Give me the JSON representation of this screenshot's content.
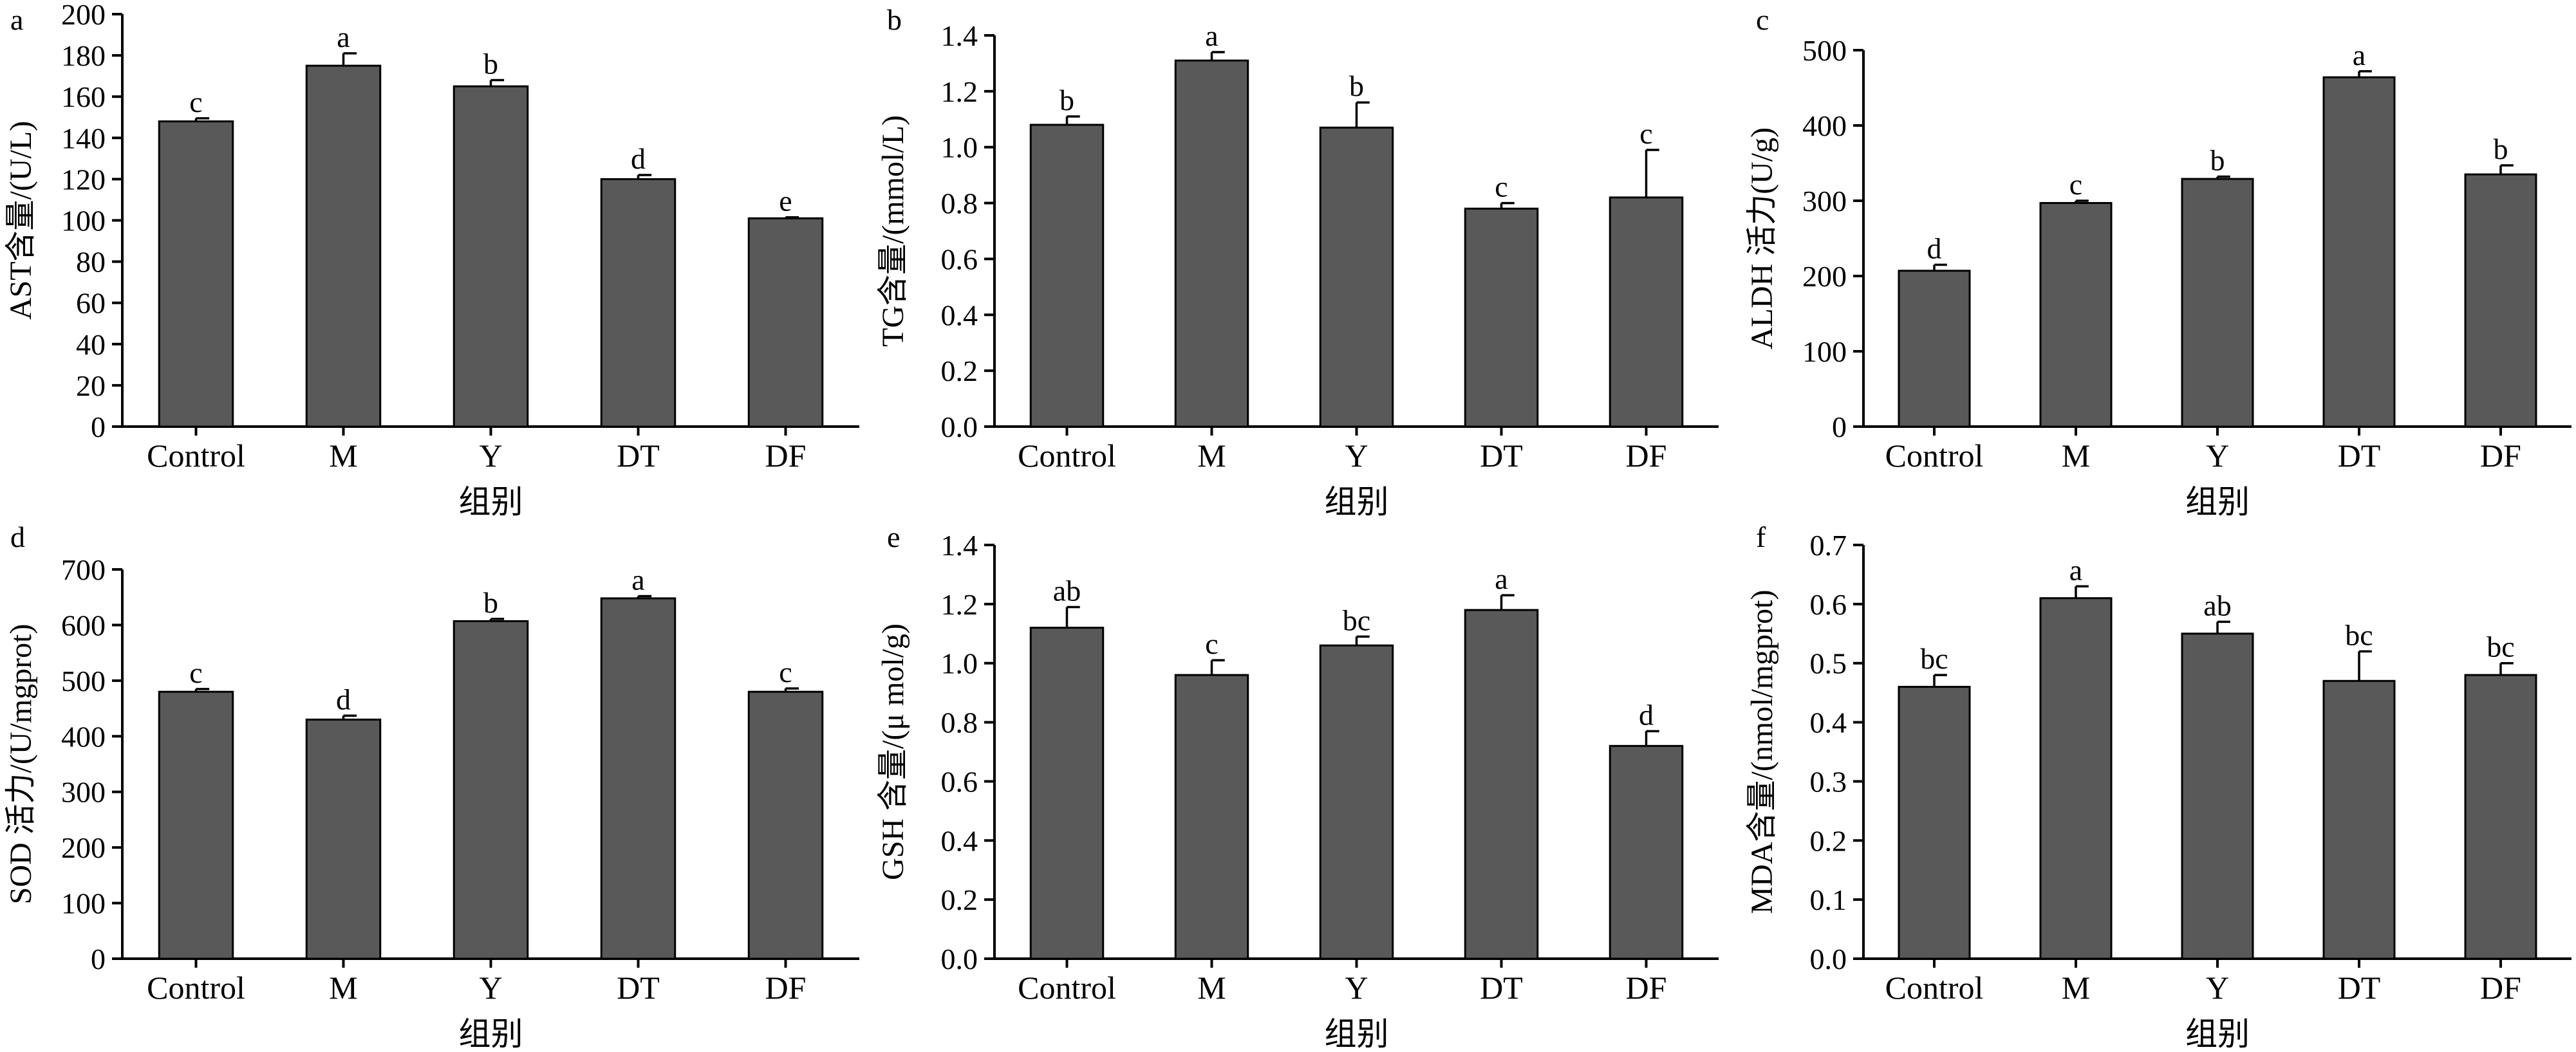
{
  "chart_data": [
    {
      "panel": "a",
      "type": "bar",
      "categories": [
        "Control",
        "M",
        "Y",
        "DT",
        "DF"
      ],
      "values": [
        148,
        175,
        165,
        120,
        101
      ],
      "errors": [
        1.5,
        6,
        3,
        2,
        0.5
      ],
      "significance": [
        "c",
        "a",
        "b",
        "d",
        "e"
      ],
      "ylabel": "AST含量/(U/L)",
      "xlabel": "组别",
      "ylim": [
        0,
        200
      ],
      "yticks": [
        0,
        20,
        40,
        60,
        80,
        100,
        120,
        140,
        160,
        180,
        200
      ]
    },
    {
      "panel": "b",
      "type": "bar",
      "categories": [
        "Control",
        "M",
        "Y",
        "DT",
        "DF"
      ],
      "values": [
        1.08,
        1.31,
        1.07,
        0.78,
        0.82
      ],
      "errors": [
        0.03,
        0.03,
        0.09,
        0.02,
        0.17
      ],
      "significance": [
        "b",
        "a",
        "b",
        "c",
        "c"
      ],
      "ylabel": "TG含量/(mmol/L)",
      "xlabel": "组别",
      "ylim": [
        0,
        1.4
      ],
      "yticks": [
        0.0,
        0.2,
        0.4,
        0.6,
        0.8,
        1.0,
        1.2,
        1.4
      ],
      "yticklabels": [
        "0.0",
        "0.2",
        "0.4",
        "0.6",
        "0.8",
        "1.0",
        "1.2",
        "1.4"
      ]
    },
    {
      "panel": "c",
      "type": "bar",
      "categories": [
        "Control",
        "M",
        "Y",
        "DT",
        "DF"
      ],
      "values": [
        207,
        297,
        329,
        464,
        335
      ],
      "errors": [
        8,
        3,
        3,
        8,
        12
      ],
      "significance": [
        "d",
        "c",
        "b",
        "a",
        "b"
      ],
      "ylabel": "ALDH 活力(U/g)",
      "xlabel": "组别",
      "ylim": [
        0,
        500
      ],
      "yticks": [
        0,
        100,
        200,
        300,
        400,
        500
      ]
    },
    {
      "panel": "d",
      "type": "bar",
      "categories": [
        "Control",
        "M",
        "Y",
        "DT",
        "DF"
      ],
      "values": [
        480,
        430,
        607,
        648,
        480
      ],
      "errors": [
        5,
        7,
        4,
        4,
        6
      ],
      "significance": [
        "c",
        "d",
        "b",
        "a",
        "c"
      ],
      "ylabel": "SOD 活力/(U/mgprot)",
      "xlabel": "组别",
      "ylim": [
        0,
        700
      ],
      "yticks": [
        0,
        100,
        200,
        300,
        400,
        500,
        600,
        700
      ]
    },
    {
      "panel": "e",
      "type": "bar",
      "categories": [
        "Control",
        "M",
        "Y",
        "DT",
        "DF"
      ],
      "values": [
        1.12,
        0.96,
        1.06,
        1.18,
        0.72
      ],
      "errors": [
        0.07,
        0.05,
        0.03,
        0.05,
        0.05
      ],
      "significance": [
        "ab",
        "c",
        "bc",
        "a",
        "d"
      ],
      "ylabel": "GSH 含量/(μ mol/g)",
      "xlabel": "组别",
      "ylim": [
        0,
        1.4
      ],
      "yticks": [
        0.0,
        0.2,
        0.4,
        0.6,
        0.8,
        1.0,
        1.2,
        1.4
      ],
      "yticklabels": [
        "0.0",
        "0.2",
        "0.4",
        "0.6",
        "0.8",
        "1.0",
        "1.2",
        "1.4"
      ]
    },
    {
      "panel": "f",
      "type": "bar",
      "categories": [
        "Control",
        "M",
        "Y",
        "DT",
        "DF"
      ],
      "values": [
        0.46,
        0.61,
        0.55,
        0.47,
        0.48
      ],
      "errors": [
        0.02,
        0.02,
        0.02,
        0.05,
        0.02
      ],
      "significance": [
        "bc",
        "a",
        "ab",
        "bc",
        "bc"
      ],
      "ylabel": "MDA含量/(nmol/mgprot)",
      "xlabel": "组别",
      "ylim": [
        0,
        0.7
      ],
      "yticks": [
        0.0,
        0.1,
        0.2,
        0.3,
        0.4,
        0.5,
        0.6,
        0.7
      ],
      "yticklabels": [
        "0.0",
        "0.1",
        "0.2",
        "0.3",
        "0.4",
        "0.5",
        "0.6",
        "0.7"
      ]
    }
  ]
}
